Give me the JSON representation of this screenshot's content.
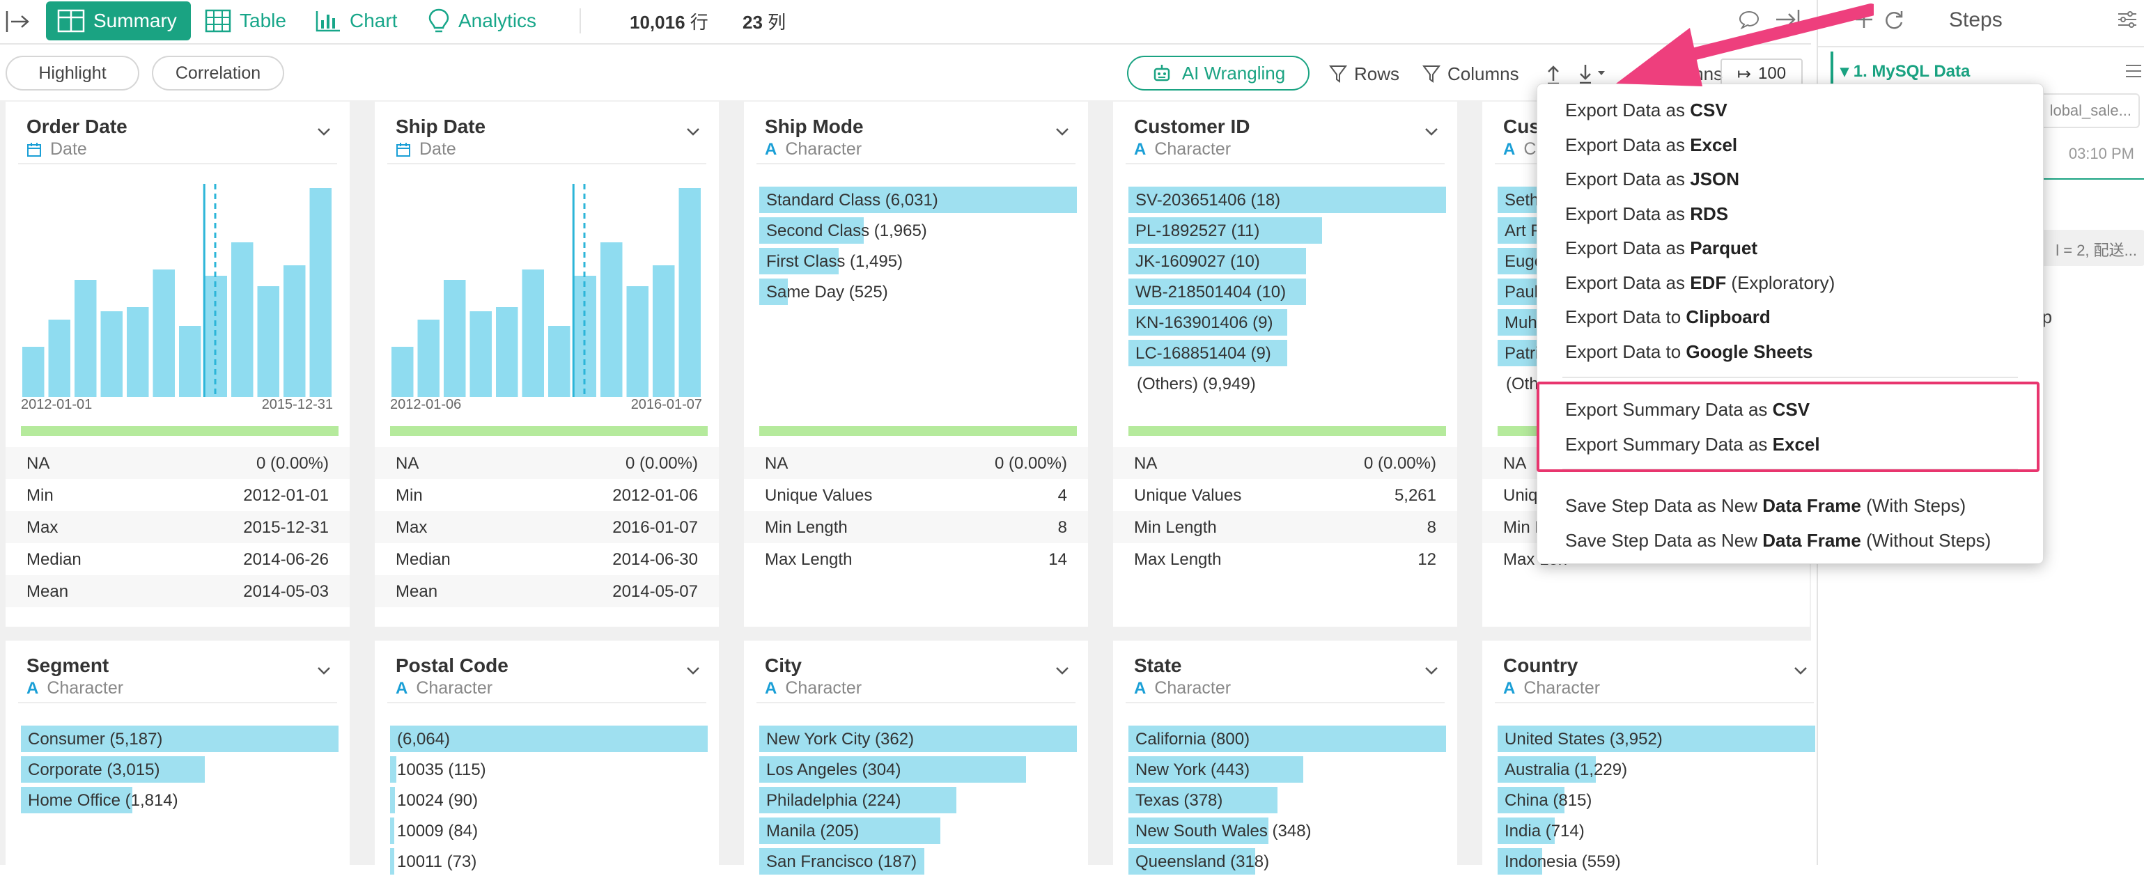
{
  "tabs": [
    {
      "label": "Summary",
      "active": true,
      "icon": "table-grid-icon"
    },
    {
      "label": "Table",
      "active": false,
      "icon": "table-icon"
    },
    {
      "label": "Chart",
      "active": false,
      "icon": "bar-chart-icon"
    },
    {
      "label": "Analytics",
      "active": false,
      "icon": "lightbulb-icon"
    }
  ],
  "counts": {
    "rows_value": "10,016",
    "rows_unit": "行",
    "cols_value": "23",
    "cols_unit": "列"
  },
  "toolbar": {
    "highlight": "Highlight",
    "correlation": "Correlation",
    "ai_wrangling": "AI Wrangling",
    "rows": "Rows",
    "columns": "Columns",
    "columns_partial": "mns",
    "row_limit": "100"
  },
  "steps_panel": {
    "title": "Steps",
    "step_name": "1. MySQL Data",
    "step_source": "lobal_sale...",
    "step_time": "03:10 PM",
    "step_sql": "l = 2, 配送...",
    "step_add": "tep"
  },
  "cards_row1": [
    {
      "title": "Order Date",
      "type": "Date",
      "type_icon": "calendar-icon",
      "axis_start": "2012-01-01",
      "axis_end": "2015-12-31",
      "hist": [
        24,
        37,
        56,
        41,
        43,
        61,
        34,
        58,
        74,
        53,
        63,
        100
      ],
      "median_pos": 0.62,
      "mean_pos": 0.585,
      "stats": [
        [
          "NA",
          "0 (0.00%)"
        ],
        [
          "Min",
          "2012-01-01"
        ],
        [
          "Max",
          "2015-12-31"
        ],
        [
          "Median",
          "2014-06-26"
        ],
        [
          "Mean",
          "2014-05-03"
        ]
      ]
    },
    {
      "title": "Ship Date",
      "type": "Date",
      "type_icon": "calendar-icon",
      "axis_start": "2012-01-06",
      "axis_end": "2016-01-07",
      "hist": [
        24,
        37,
        56,
        41,
        43,
        61,
        34,
        58,
        74,
        53,
        63,
        100
      ],
      "median_pos": 0.62,
      "mean_pos": 0.585,
      "stats": [
        [
          "NA",
          "0 (0.00%)"
        ],
        [
          "Min",
          "2012-01-06"
        ],
        [
          "Max",
          "2016-01-07"
        ],
        [
          "Median",
          "2014-06-30"
        ],
        [
          "Mean",
          "2014-05-07"
        ]
      ]
    },
    {
      "title": "Ship Mode",
      "type": "Character",
      "type_icon": "character-a-icon",
      "bars": [
        [
          "Standard Class (6,031)",
          1.0
        ],
        [
          "Second Class (1,965)",
          0.33
        ],
        [
          "First Class (1,495)",
          0.25
        ],
        [
          "Same Day (525)",
          0.09
        ]
      ],
      "others": "",
      "stats": [
        [
          "NA",
          "0 (0.00%)"
        ],
        [
          "Unique Values",
          "4"
        ],
        [
          "Min Length",
          "8"
        ],
        [
          "Max Length",
          "14"
        ]
      ]
    },
    {
      "title": "Customer ID",
      "type": "Character",
      "type_icon": "character-a-icon",
      "bars": [
        [
          "SV-203651406 (18)",
          1.0
        ],
        [
          "PL-1892527 (11)",
          0.61
        ],
        [
          "JK-1609027 (10)",
          0.56
        ],
        [
          "WB-218501404 (10)",
          0.56
        ],
        [
          "KN-163901406 (9)",
          0.5
        ],
        [
          "LC-168851404 (9)",
          0.5
        ]
      ],
      "others": "(Others) (9,949)",
      "stats": [
        [
          "NA",
          "0 (0.00%)"
        ],
        [
          "Unique Values",
          "5,261"
        ],
        [
          "Min Length",
          "8"
        ],
        [
          "Max Length",
          "12"
        ]
      ]
    },
    {
      "title": "Custom",
      "type": "Char",
      "type_icon": "character-a-icon",
      "bars": [
        [
          "Seth Ve",
          1.0
        ],
        [
          "Art Ferg",
          0.62
        ],
        [
          "Eugene",
          0.56
        ],
        [
          "Paul Pro",
          0.56
        ],
        [
          "Muhamm",
          0.5
        ],
        [
          "Patrick C",
          0.5
        ]
      ],
      "others": "(Others)",
      "stats": [
        [
          "NA",
          ""
        ],
        [
          "Unique",
          ""
        ],
        [
          "Min Len",
          ""
        ],
        [
          "Max Len",
          ""
        ]
      ]
    }
  ],
  "cards_row2": [
    {
      "title": "Segment",
      "type": "Character",
      "type_icon": "character-a-icon",
      "bars": [
        [
          "Consumer (5,187)",
          1.0
        ],
        [
          "Corporate (3,015)",
          0.58
        ],
        [
          "Home Office (1,814)",
          0.35
        ]
      ]
    },
    {
      "title": "Postal Code",
      "type": "Character",
      "type_icon": "character-a-icon",
      "bars": [
        [
          "(6,064)",
          1.0
        ],
        [
          "10035 (115)",
          0.02
        ],
        [
          "10024 (90)",
          0.015
        ],
        [
          "10009 (84)",
          0.014
        ],
        [
          "10011 (73)",
          0.012
        ]
      ]
    },
    {
      "title": "City",
      "type": "Character",
      "type_icon": "character-a-icon",
      "bars": [
        [
          "New York City (362)",
          1.0
        ],
        [
          "Los Angeles (304)",
          0.84
        ],
        [
          "Philadelphia (224)",
          0.62
        ],
        [
          "Manila (205)",
          0.57
        ],
        [
          "San Francisco (187)",
          0.52
        ]
      ]
    },
    {
      "title": "State",
      "type": "Character",
      "type_icon": "character-a-icon",
      "bars": [
        [
          "California (800)",
          1.0
        ],
        [
          "New York (443)",
          0.55
        ],
        [
          "Texas (378)",
          0.47
        ],
        [
          "New South Wales (348)",
          0.44
        ],
        [
          "Queensland (318)",
          0.4
        ]
      ]
    },
    {
      "title": "Country",
      "type": "Character",
      "type_icon": "character-a-icon",
      "bars": [
        [
          "United States (3,952)",
          1.0
        ],
        [
          "Australia (1,229)",
          0.31
        ],
        [
          "China (815)",
          0.21
        ],
        [
          "India (714)",
          0.18
        ],
        [
          "Indonesia (559)",
          0.14
        ]
      ]
    }
  ],
  "export_menu": {
    "group1": [
      {
        "pre": "Export Data as ",
        "bold": "CSV",
        "post": ""
      },
      {
        "pre": "Export Data as ",
        "bold": "Excel",
        "post": ""
      },
      {
        "pre": "Export Data as ",
        "bold": "JSON",
        "post": ""
      },
      {
        "pre": "Export Data as ",
        "bold": "RDS",
        "post": ""
      },
      {
        "pre": "Export Data as ",
        "bold": "Parquet",
        "post": ""
      },
      {
        "pre": "Export Data as ",
        "bold": "EDF",
        "post": " (Exploratory)"
      },
      {
        "pre": "Export Data to ",
        "bold": "Clipboard",
        "post": ""
      },
      {
        "pre": "Export Data to ",
        "bold": "Google Sheets",
        "post": ""
      }
    ],
    "group2": [
      {
        "pre": "Export Summary Data as ",
        "bold": "CSV",
        "post": ""
      },
      {
        "pre": "Export Summary Data as ",
        "bold": "Excel",
        "post": ""
      }
    ],
    "group3": [
      {
        "pre": "Save Step Data as New ",
        "bold": "Data Frame",
        "post": " (With Steps)"
      },
      {
        "pre": "Save Step Data as New ",
        "bold": "Data Frame",
        "post": " (Without Steps)"
      }
    ]
  },
  "colors": {
    "accent": "#1aa382",
    "bar": "#9fe0f0",
    "hist": "#8fdcf0",
    "highlight": "#e8356e",
    "na_bar": "#b5ea9c"
  }
}
